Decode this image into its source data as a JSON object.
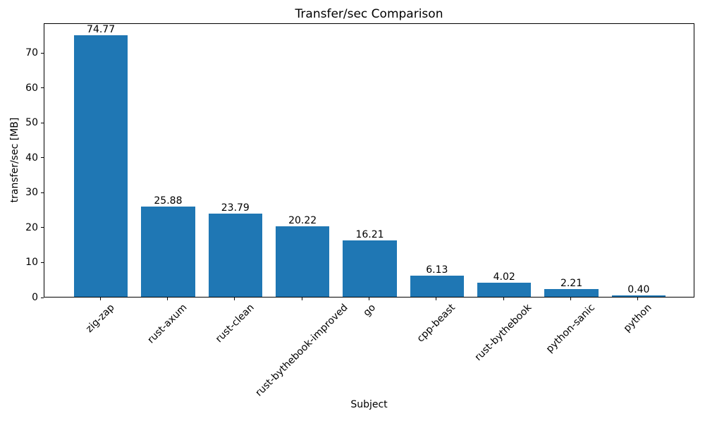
{
  "chart_data": {
    "type": "bar",
    "title": "Transfer/sec Comparison",
    "xlabel": "Subject",
    "ylabel": "transfer/sec [MB]",
    "categories": [
      "zig-zap",
      "rust-axum",
      "rust-clean",
      "rust-bythebook-improved",
      "go",
      "cpp-beast",
      "rust-bythebook",
      "python-sanic",
      "python"
    ],
    "values": [
      74.77,
      25.88,
      23.79,
      20.22,
      16.21,
      6.13,
      4.02,
      2.21,
      0.4
    ],
    "value_labels": [
      "74.77",
      "25.88",
      "23.79",
      "20.22",
      "16.21",
      "6.13",
      "4.02",
      "2.21",
      "0.40"
    ],
    "yticks": [
      0,
      10,
      20,
      30,
      40,
      50,
      60,
      70
    ],
    "ylim": [
      0,
      78.5
    ],
    "bar_color": "#1f77b4",
    "spine_color": "#000000",
    "grid": false,
    "legend": null,
    "bar_width_fraction": 0.8,
    "x_tick_rotation_deg": 45
  }
}
